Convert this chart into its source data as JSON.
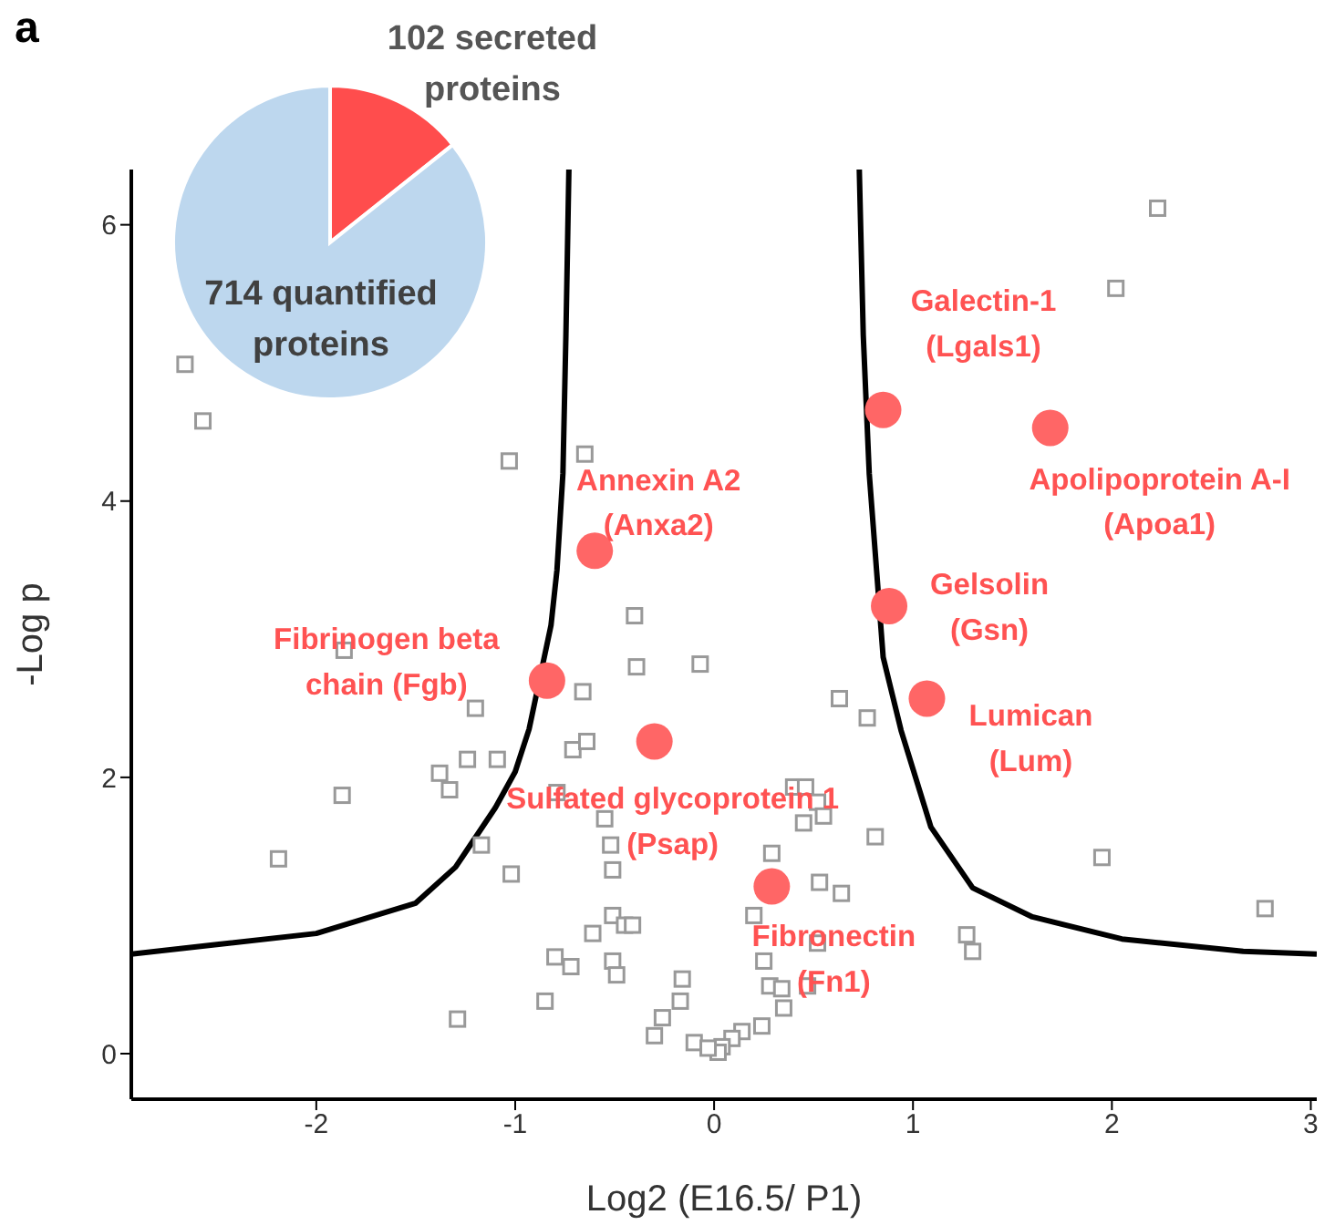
{
  "chart_data": [
    {
      "type": "pie",
      "categories": [
        "102 secreted proteins",
        "714 quantified proteins"
      ],
      "values": [
        14.3,
        85.7
      ],
      "colors": [
        "#ff4d4d",
        "#bdd7ee"
      ]
    },
    {
      "type": "scatter",
      "xlabel": "Log2 (E16.5/ P1)",
      "ylabel": "-Log p",
      "xlim": [
        -2.93,
        3.03
      ],
      "ylim": [
        -0.33,
        6.4
      ],
      "xticks": [
        -2,
        -1,
        0,
        1,
        2,
        3
      ],
      "yticks": [
        0,
        2,
        4,
        6
      ],
      "series": [
        {
          "type": "scatter",
          "marker": "square",
          "color": "#999999",
          "x": [
            2.23,
            2.02,
            -2.66,
            -2.57,
            -1.03,
            -0.65,
            -0.4,
            -1.86,
            -0.66,
            -0.07,
            0.63,
            0.77,
            1.95,
            2.77,
            0.4,
            0.46,
            0.52,
            0.55,
            0.45,
            0.81,
            0.29,
            0.53,
            0.64,
            1.27,
            1.3,
            0.2,
            0.25,
            0.28,
            0.34,
            0.35,
            0.24,
            0.14,
            0.09,
            0.04,
            0.02,
            0.52,
            0.47,
            -1.2,
            -0.39,
            -1.24,
            -1.09,
            -1.38,
            -1.33,
            -1.87,
            -2.19,
            -1.17,
            -1.02,
            -0.71,
            -0.64,
            -0.79,
            -0.55,
            -0.52,
            -0.51,
            -0.51,
            -0.45,
            -0.41,
            -0.61,
            -0.8,
            -0.72,
            -0.51,
            -0.49,
            -0.85,
            -1.29,
            -0.16,
            -0.17,
            -0.26,
            -0.3,
            -0.1,
            -0.03
          ],
          "values": [
            6.12,
            5.54,
            4.99,
            4.58,
            4.29,
            4.34,
            3.17,
            2.92,
            2.62,
            2.82,
            2.57,
            2.43,
            1.42,
            1.05,
            1.93,
            1.93,
            1.82,
            1.72,
            1.67,
            1.57,
            1.45,
            1.24,
            1.16,
            0.86,
            0.74,
            1.0,
            0.67,
            0.49,
            0.47,
            0.33,
            0.2,
            0.16,
            0.11,
            0.05,
            0.01,
            0.8,
            0.49,
            2.5,
            2.8,
            2.13,
            2.13,
            2.03,
            1.91,
            1.87,
            1.41,
            1.51,
            1.3,
            2.2,
            2.26,
            1.89,
            1.7,
            1.51,
            1.33,
            1.0,
            0.93,
            0.93,
            0.87,
            0.7,
            0.63,
            0.67,
            0.57,
            0.38,
            0.25,
            0.54,
            0.38,
            0.26,
            0.13,
            0.08,
            0.04
          ]
        },
        {
          "type": "scatter",
          "marker": "circle",
          "color": "#ff6666",
          "x": [
            0.85,
            1.69,
            0.88,
            1.07,
            0.29,
            -0.6,
            -0.84,
            -0.3
          ],
          "values": [
            4.66,
            4.53,
            3.24,
            2.57,
            1.21,
            3.64,
            2.7,
            2.26
          ]
        },
        {
          "type": "line",
          "color": "#000000",
          "x": [
            -2.93,
            -2.5,
            -2,
            -1.5,
            -1.3,
            -1.1,
            -1,
            -0.93,
            -0.82,
            -0.79,
            -0.76,
            -0.745,
            -0.73
          ],
          "values": [
            0.72,
            0.79,
            0.87,
            1.09,
            1.35,
            1.78,
            2.04,
            2.35,
            3.1,
            3.5,
            4.2,
            5.2,
            6.4
          ]
        },
        {
          "type": "line",
          "color": "#000000",
          "x": [
            0.73,
            0.75,
            0.78,
            0.85,
            0.94,
            1.09,
            1.3,
            1.6,
            2.05,
            2.66,
            3.03
          ],
          "values": [
            6.4,
            5.2,
            4.2,
            2.87,
            2.34,
            1.64,
            1.2,
            0.99,
            0.83,
            0.74,
            0.72
          ]
        }
      ],
      "annotations": [
        "a",
        {
          "text": "Galectin-1\n(Lgals1)",
          "x": 0.85,
          "y": 4.66
        },
        {
          "text": "Apolipoprotein A-I\n(Apoa1)",
          "x": 1.69,
          "y": 4.53
        },
        {
          "text": "Gelsolin\n(Gsn)",
          "x": 0.88,
          "y": 3.24
        },
        {
          "text": "Lumican\n(Lum)",
          "x": 1.07,
          "y": 2.57
        },
        {
          "text": "Fibronectin\n(Fn1)",
          "x": 0.29,
          "y": 1.21
        },
        {
          "text": "Annexin A2\n(Anxa2)",
          "x": -0.6,
          "y": 3.64
        },
        {
          "text": "Fibrinogen beta\nchain (Fgb)",
          "x": -0.84,
          "y": 2.7
        },
        {
          "text": "Sulfated glycoprotein 1\n(Psap)",
          "x": -0.3,
          "y": 2.26
        }
      ]
    }
  ]
}
